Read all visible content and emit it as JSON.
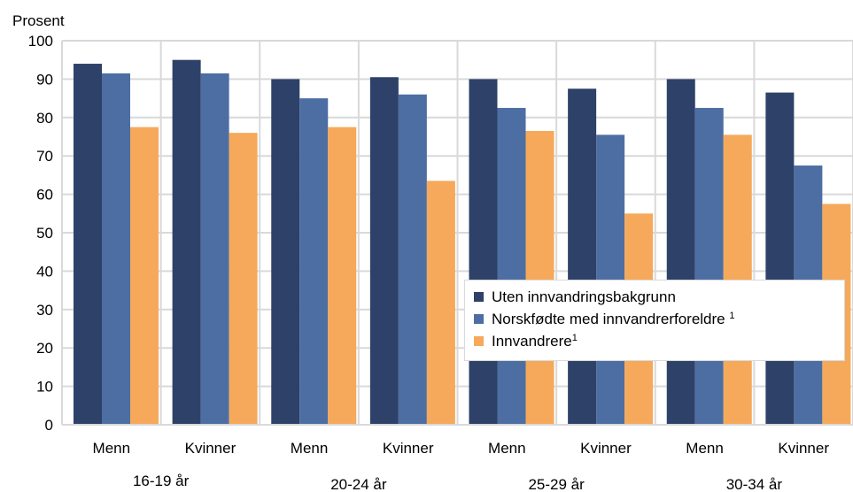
{
  "chart_data": {
    "type": "bar",
    "ylabel": "Prosent",
    "ylim": [
      0,
      100
    ],
    "yticks": [
      0,
      10,
      20,
      30,
      40,
      50,
      60,
      70,
      80,
      90,
      100
    ],
    "grid": true,
    "legend_position": "bottom-right",
    "groups": [
      {
        "label": "16-19 år",
        "categories": [
          "Menn",
          "Kvinner"
        ]
      },
      {
        "label": "20-24 år",
        "categories": [
          "Menn",
          "Kvinner"
        ]
      },
      {
        "label": "25-29 år",
        "categories": [
          "Menn",
          "Kvinner"
        ]
      },
      {
        "label": "30-34 år",
        "categories": [
          "Menn",
          "Kvinner"
        ]
      }
    ],
    "categories": [
      "Menn",
      "Kvinner",
      "Menn",
      "Kvinner",
      "Menn",
      "Kvinner",
      "Menn",
      "Kvinner"
    ],
    "series": [
      {
        "name": "Uten innvandringsbakgrunn",
        "sup": "",
        "color": "#2e4168",
        "values": [
          94,
          95,
          90,
          90.5,
          90,
          87.5,
          90,
          86.5
        ]
      },
      {
        "name": "Norskfødte med innvandrerforeldre ",
        "sup": "1",
        "color": "#4d6ea3",
        "values": [
          91.5,
          91.5,
          85,
          86,
          82.5,
          75.5,
          82.5,
          67.5
        ]
      },
      {
        "name": "Innvandrere",
        "sup": "1",
        "color": "#f6a95a",
        "values": [
          77.5,
          76,
          77.5,
          63.5,
          76.5,
          55,
          75.5,
          57.5
        ]
      }
    ]
  }
}
